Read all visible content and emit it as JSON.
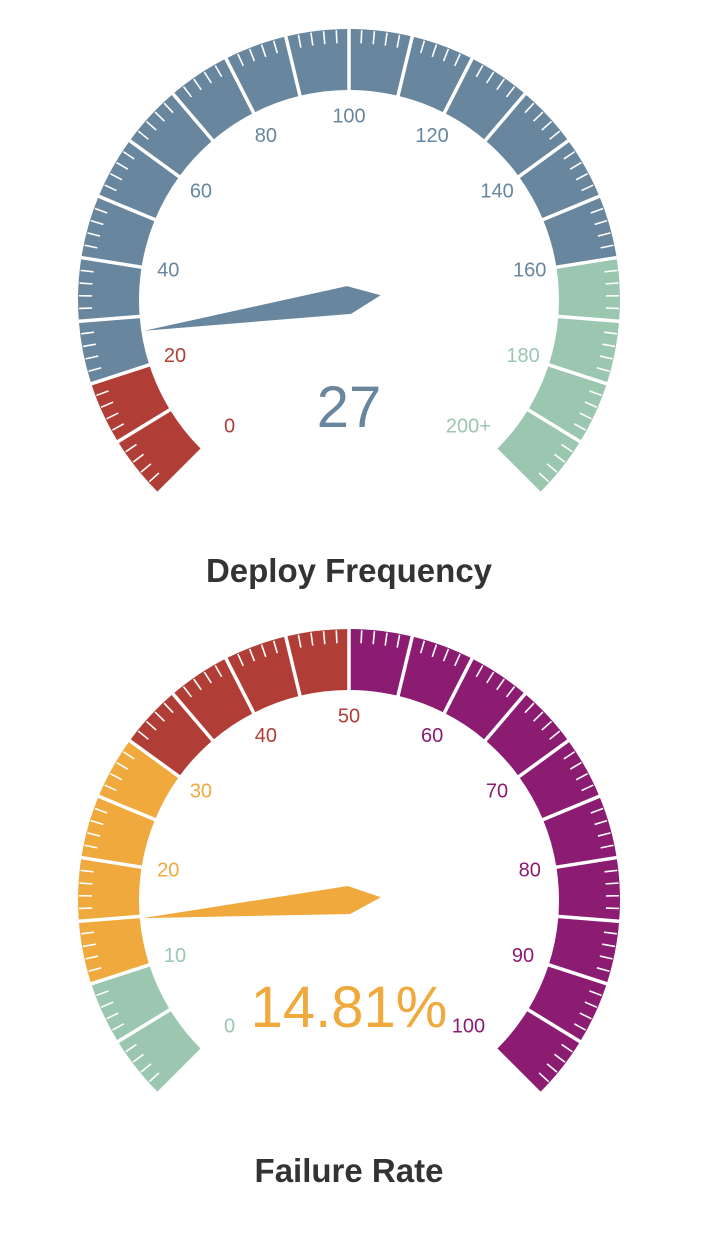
{
  "chart_data": [
    {
      "type": "gauge",
      "title": "Deploy Frequency",
      "value": 27,
      "value_label": "27",
      "min": 0,
      "max": 200,
      "ticks": [
        {
          "value": 0,
          "label": "0"
        },
        {
          "value": 20,
          "label": "20"
        },
        {
          "value": 40,
          "label": "40"
        },
        {
          "value": 60,
          "label": "60"
        },
        {
          "value": 80,
          "label": "80"
        },
        {
          "value": 100,
          "label": "100"
        },
        {
          "value": 120,
          "label": "120"
        },
        {
          "value": 140,
          "label": "140"
        },
        {
          "value": 160,
          "label": "160"
        },
        {
          "value": 180,
          "label": "180"
        },
        {
          "value": 200,
          "label": "200+"
        }
      ],
      "bands": [
        {
          "from": 0,
          "to": 20,
          "color": "#b03e36"
        },
        {
          "from": 20,
          "to": 160,
          "color": "#68869e"
        },
        {
          "from": 160,
          "to": 200,
          "color": "#9bc6b0"
        }
      ],
      "needle_color": "#68869e"
    },
    {
      "type": "gauge",
      "title": "Failure Rate",
      "value": 14.81,
      "value_label": "14.81%",
      "min": 0,
      "max": 100,
      "ticks": [
        {
          "value": 0,
          "label": "0"
        },
        {
          "value": 10,
          "label": "10"
        },
        {
          "value": 20,
          "label": "20"
        },
        {
          "value": 30,
          "label": "30"
        },
        {
          "value": 40,
          "label": "40"
        },
        {
          "value": 50,
          "label": "50"
        },
        {
          "value": 60,
          "label": "60"
        },
        {
          "value": 70,
          "label": "70"
        },
        {
          "value": 80,
          "label": "80"
        },
        {
          "value": 90,
          "label": "90"
        },
        {
          "value": 100,
          "label": "100"
        }
      ],
      "bands": [
        {
          "from": 0,
          "to": 10,
          "color": "#9bc6b0"
        },
        {
          "from": 10,
          "to": 30,
          "color": "#f0a93c"
        },
        {
          "from": 30,
          "to": 50,
          "color": "#b03e36"
        },
        {
          "from": 50,
          "to": 100,
          "color": "#8b1c72"
        }
      ],
      "needle_color": "#f0a93c"
    }
  ]
}
